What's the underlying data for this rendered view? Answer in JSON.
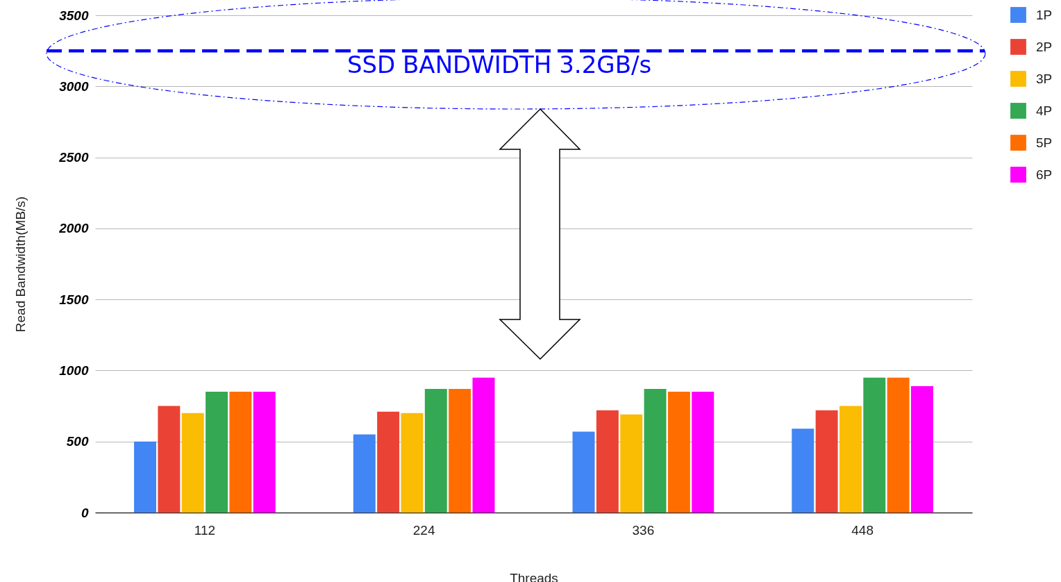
{
  "chart_data": {
    "type": "bar",
    "xlabel": "Threads",
    "ylabel": "Read Bandwidth(MB/s)",
    "categories": [
      "112",
      "224",
      "336",
      "448"
    ],
    "series": [
      {
        "name": "1P",
        "color": "#4285f4",
        "values": [
          500,
          550,
          570,
          590
        ]
      },
      {
        "name": "2P",
        "color": "#ea4335",
        "values": [
          750,
          710,
          720,
          720
        ]
      },
      {
        "name": "3P",
        "color": "#fbbc04",
        "values": [
          700,
          700,
          690,
          750
        ]
      },
      {
        "name": "4P",
        "color": "#34a853",
        "values": [
          850,
          870,
          870,
          950
        ]
      },
      {
        "name": "5P",
        "color": "#ff6d01",
        "values": [
          850,
          870,
          850,
          950
        ]
      },
      {
        "name": "6P",
        "color": "#ff00ff",
        "values": [
          850,
          950,
          850,
          890
        ]
      }
    ],
    "ylim": [
      0,
      3500
    ],
    "yticks": [
      0,
      500,
      1000,
      1500,
      2000,
      2500,
      3000,
      3500
    ],
    "grid": "y",
    "legend": "top right",
    "ref_lines": [
      {
        "axis": "y",
        "value": 3250,
        "label": "SSD BANDWIDTH 3.2GB/s",
        "color": "#0000ff",
        "line_style": "dashed"
      }
    ]
  }
}
